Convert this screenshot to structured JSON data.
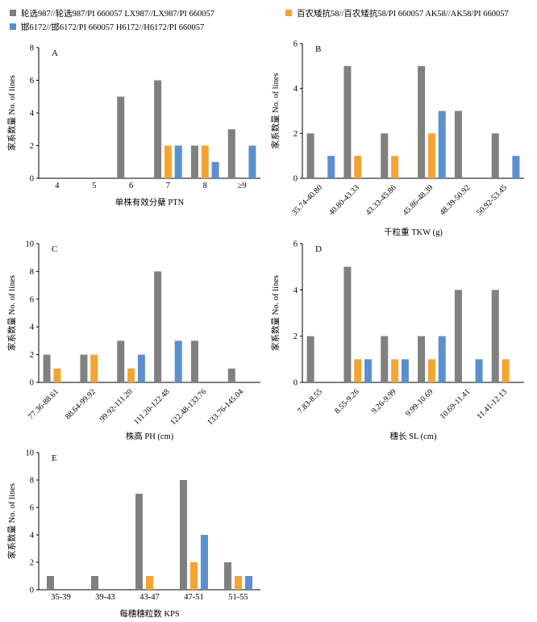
{
  "legend": {
    "items": [
      {
        "label": "轮选987//轮选987/PI 660057  LX987//LX987/PI 660057",
        "color": "#808080"
      },
      {
        "label": "百农矮抗58//百农矮抗58/PI 660057  AK58//AK58/PI 660057",
        "color": "#F5A432"
      },
      {
        "label": "邯6172//邯6172/PI 660057  H6172//H6172/PI 660057",
        "color": "#5B8FCF"
      }
    ]
  },
  "chart_data": [
    {
      "panel": "A",
      "type": "bar",
      "ylabel": "家系数量 No. of lines",
      "xlabel": "单株有效分蘖 PTN",
      "ylim": [
        0,
        8
      ],
      "yticks": [
        0,
        2,
        4,
        6,
        8
      ],
      "categories": [
        "4",
        "5",
        "6",
        "7",
        "8",
        "≥9"
      ],
      "series": [
        {
          "values": [
            0,
            0,
            5,
            6,
            2,
            3
          ]
        },
        {
          "values": [
            0,
            0,
            0,
            2,
            2,
            0
          ]
        },
        {
          "values": [
            0,
            0,
            0,
            2,
            1,
            2
          ]
        }
      ]
    },
    {
      "panel": "B",
      "type": "bar",
      "ylabel": "家系数量 No. of lines",
      "xlabel": "千粒重 TKW (g)",
      "ylim": [
        0,
        6
      ],
      "yticks": [
        0,
        2,
        4,
        6
      ],
      "categories": [
        "35.74-40.80",
        "40.80-43.33",
        "43.33-45.86",
        "45.86-48.39",
        "48.39-50.92",
        "50.92-53.45"
      ],
      "series": [
        {
          "values": [
            2,
            5,
            2,
            5,
            3,
            2
          ]
        },
        {
          "values": [
            0,
            1,
            1,
            2,
            0,
            0
          ]
        },
        {
          "values": [
            1,
            0,
            0,
            3,
            0,
            1
          ]
        }
      ]
    },
    {
      "panel": "C",
      "type": "bar",
      "ylabel": "家系数量 No. of lines",
      "xlabel": "株高 PH (cm)",
      "ylim": [
        0,
        10
      ],
      "yticks": [
        0,
        2,
        4,
        6,
        8,
        10
      ],
      "categories": [
        "77.36-88.61",
        "88.64-99.92",
        "99.92-111.20",
        "111.20-122.48",
        "122.48-133.76",
        "133.76-145.04"
      ],
      "series": [
        {
          "values": [
            2,
            2,
            3,
            8,
            3,
            1
          ]
        },
        {
          "values": [
            1,
            2,
            1,
            0,
            0,
            0
          ]
        },
        {
          "values": [
            0,
            0,
            2,
            3,
            0,
            0
          ]
        }
      ]
    },
    {
      "panel": "D",
      "type": "bar",
      "ylabel": "家系数量 No. of lines",
      "xlabel": "穗长 SL (cm)",
      "ylim": [
        0,
        6
      ],
      "yticks": [
        0,
        2,
        4,
        6
      ],
      "categories": [
        "7.83-8.55",
        "8.55-9.26",
        "9.26-9.99",
        "9.99-10.69",
        "10.69-11.41",
        "11.41-12.13"
      ],
      "series": [
        {
          "values": [
            2,
            5,
            2,
            2,
            4,
            4
          ]
        },
        {
          "values": [
            0,
            1,
            1,
            1,
            0,
            1
          ]
        },
        {
          "values": [
            0,
            1,
            1,
            2,
            1,
            0
          ]
        }
      ]
    },
    {
      "panel": "E",
      "type": "bar",
      "ylabel": "家系数量 No. of lines",
      "xlabel": "每穗穗粒数 KPS",
      "ylim": [
        0,
        10
      ],
      "yticks": [
        0,
        2,
        4,
        6,
        8,
        10
      ],
      "categories": [
        "35-39",
        "39-43",
        "43-47",
        "47-51",
        "51-55"
      ],
      "series": [
        {
          "values": [
            1,
            1,
            7,
            8,
            2
          ]
        },
        {
          "values": [
            0,
            0,
            1,
            2,
            1
          ]
        },
        {
          "values": [
            0,
            0,
            0,
            4,
            1
          ]
        }
      ]
    }
  ]
}
